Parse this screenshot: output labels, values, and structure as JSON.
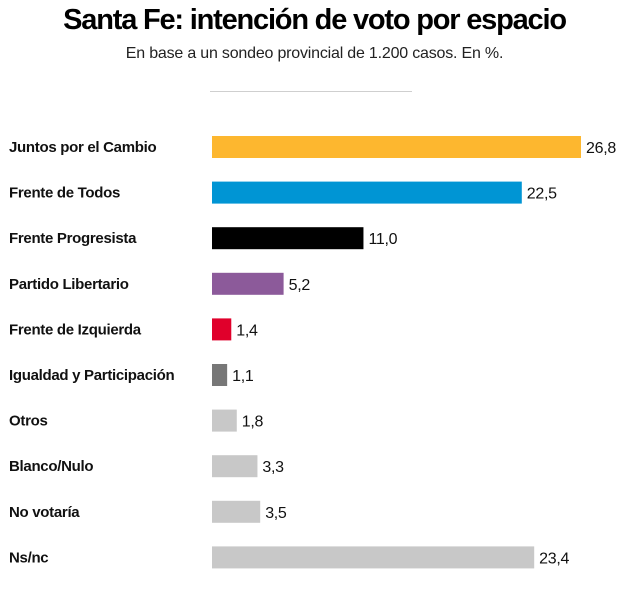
{
  "chart_data": {
    "type": "bar",
    "orientation": "horizontal",
    "title": "Santa Fe: intención de voto por espacio",
    "subtitle": "En base a un sondeo provincial de 1.200 casos. En %.",
    "xlabel": "",
    "ylabel": "",
    "xlim": [
      0,
      26.8
    ],
    "grid": false,
    "categories": [
      "Juntos por el Cambio",
      "Frente de Todos",
      "Frente Progresista",
      "Partido Libertario",
      "Frente de Izquierda",
      "Igualdad y Participación",
      "Otros",
      "Blanco/Nulo",
      "No votaría",
      "Ns/nc"
    ],
    "values": [
      26.8,
      22.5,
      11.0,
      5.2,
      1.4,
      1.1,
      1.8,
      3.3,
      3.5,
      23.4
    ],
    "value_labels": [
      "26,8",
      "22,5",
      "11,0",
      "5,2",
      "1,4",
      "1,1",
      "1,8",
      "3,3",
      "3,5",
      "23,4"
    ],
    "colors": [
      "#FDB72F",
      "#0095D4",
      "#000000",
      "#8C5A9A",
      "#E0002B",
      "#777777",
      "#C8C8C8",
      "#C8C8C8",
      "#C8C8C8",
      "#C8C8C8"
    ]
  }
}
